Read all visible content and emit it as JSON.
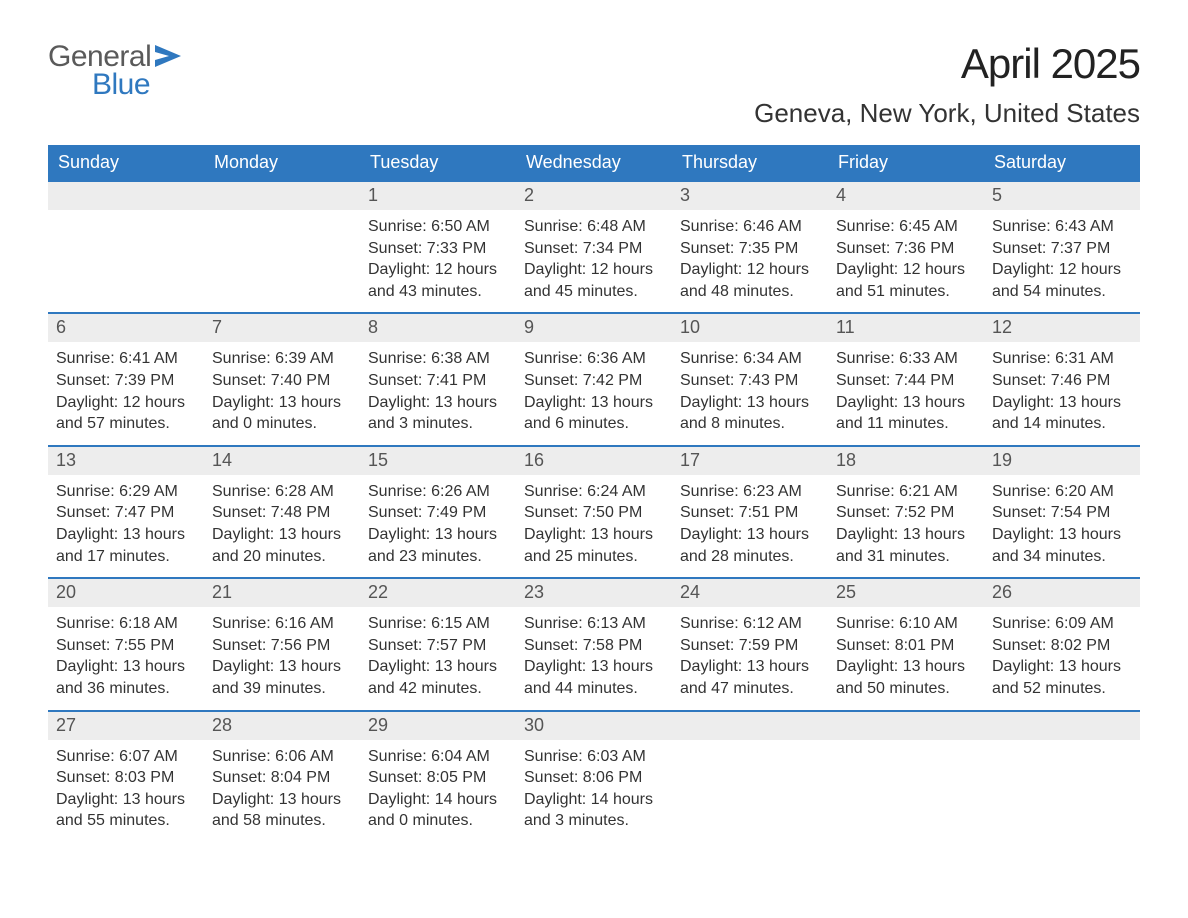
{
  "logo": {
    "general": "General",
    "blue": "Blue"
  },
  "header": {
    "month_title": "April 2025",
    "location": "Geneva, New York, United States"
  },
  "colors": {
    "header_bg": "#2f78bf",
    "header_text": "#ffffff",
    "daynum_bg": "#ededed",
    "daynum_text": "#555555",
    "body_text": "#333333",
    "logo_gray": "#5a5a5a",
    "logo_blue": "#2f78bf",
    "background": "#ffffff",
    "week_divider": "#2f78bf"
  },
  "typography": {
    "month_title_fontsize": 42,
    "location_fontsize": 26,
    "dow_fontsize": 18,
    "daynum_fontsize": 18,
    "body_fontsize": 16,
    "logo_fontsize": 30,
    "font_family": "Segoe UI"
  },
  "calendar": {
    "type": "calendar-grid",
    "columns": 7,
    "days_of_week": [
      "Sunday",
      "Monday",
      "Tuesday",
      "Wednesday",
      "Thursday",
      "Friday",
      "Saturday"
    ],
    "weeks": [
      [
        {
          "num": ""
        },
        {
          "num": ""
        },
        {
          "num": "1",
          "sunrise": "Sunrise: 6:50 AM",
          "sunset": "Sunset: 7:33 PM",
          "daylight1": "Daylight: 12 hours",
          "daylight2": "and 43 minutes."
        },
        {
          "num": "2",
          "sunrise": "Sunrise: 6:48 AM",
          "sunset": "Sunset: 7:34 PM",
          "daylight1": "Daylight: 12 hours",
          "daylight2": "and 45 minutes."
        },
        {
          "num": "3",
          "sunrise": "Sunrise: 6:46 AM",
          "sunset": "Sunset: 7:35 PM",
          "daylight1": "Daylight: 12 hours",
          "daylight2": "and 48 minutes."
        },
        {
          "num": "4",
          "sunrise": "Sunrise: 6:45 AM",
          "sunset": "Sunset: 7:36 PM",
          "daylight1": "Daylight: 12 hours",
          "daylight2": "and 51 minutes."
        },
        {
          "num": "5",
          "sunrise": "Sunrise: 6:43 AM",
          "sunset": "Sunset: 7:37 PM",
          "daylight1": "Daylight: 12 hours",
          "daylight2": "and 54 minutes."
        }
      ],
      [
        {
          "num": "6",
          "sunrise": "Sunrise: 6:41 AM",
          "sunset": "Sunset: 7:39 PM",
          "daylight1": "Daylight: 12 hours",
          "daylight2": "and 57 minutes."
        },
        {
          "num": "7",
          "sunrise": "Sunrise: 6:39 AM",
          "sunset": "Sunset: 7:40 PM",
          "daylight1": "Daylight: 13 hours",
          "daylight2": "and 0 minutes."
        },
        {
          "num": "8",
          "sunrise": "Sunrise: 6:38 AM",
          "sunset": "Sunset: 7:41 PM",
          "daylight1": "Daylight: 13 hours",
          "daylight2": "and 3 minutes."
        },
        {
          "num": "9",
          "sunrise": "Sunrise: 6:36 AM",
          "sunset": "Sunset: 7:42 PM",
          "daylight1": "Daylight: 13 hours",
          "daylight2": "and 6 minutes."
        },
        {
          "num": "10",
          "sunrise": "Sunrise: 6:34 AM",
          "sunset": "Sunset: 7:43 PM",
          "daylight1": "Daylight: 13 hours",
          "daylight2": "and 8 minutes."
        },
        {
          "num": "11",
          "sunrise": "Sunrise: 6:33 AM",
          "sunset": "Sunset: 7:44 PM",
          "daylight1": "Daylight: 13 hours",
          "daylight2": "and 11 minutes."
        },
        {
          "num": "12",
          "sunrise": "Sunrise: 6:31 AM",
          "sunset": "Sunset: 7:46 PM",
          "daylight1": "Daylight: 13 hours",
          "daylight2": "and 14 minutes."
        }
      ],
      [
        {
          "num": "13",
          "sunrise": "Sunrise: 6:29 AM",
          "sunset": "Sunset: 7:47 PM",
          "daylight1": "Daylight: 13 hours",
          "daylight2": "and 17 minutes."
        },
        {
          "num": "14",
          "sunrise": "Sunrise: 6:28 AM",
          "sunset": "Sunset: 7:48 PM",
          "daylight1": "Daylight: 13 hours",
          "daylight2": "and 20 minutes."
        },
        {
          "num": "15",
          "sunrise": "Sunrise: 6:26 AM",
          "sunset": "Sunset: 7:49 PM",
          "daylight1": "Daylight: 13 hours",
          "daylight2": "and 23 minutes."
        },
        {
          "num": "16",
          "sunrise": "Sunrise: 6:24 AM",
          "sunset": "Sunset: 7:50 PM",
          "daylight1": "Daylight: 13 hours",
          "daylight2": "and 25 minutes."
        },
        {
          "num": "17",
          "sunrise": "Sunrise: 6:23 AM",
          "sunset": "Sunset: 7:51 PM",
          "daylight1": "Daylight: 13 hours",
          "daylight2": "and 28 minutes."
        },
        {
          "num": "18",
          "sunrise": "Sunrise: 6:21 AM",
          "sunset": "Sunset: 7:52 PM",
          "daylight1": "Daylight: 13 hours",
          "daylight2": "and 31 minutes."
        },
        {
          "num": "19",
          "sunrise": "Sunrise: 6:20 AM",
          "sunset": "Sunset: 7:54 PM",
          "daylight1": "Daylight: 13 hours",
          "daylight2": "and 34 minutes."
        }
      ],
      [
        {
          "num": "20",
          "sunrise": "Sunrise: 6:18 AM",
          "sunset": "Sunset: 7:55 PM",
          "daylight1": "Daylight: 13 hours",
          "daylight2": "and 36 minutes."
        },
        {
          "num": "21",
          "sunrise": "Sunrise: 6:16 AM",
          "sunset": "Sunset: 7:56 PM",
          "daylight1": "Daylight: 13 hours",
          "daylight2": "and 39 minutes."
        },
        {
          "num": "22",
          "sunrise": "Sunrise: 6:15 AM",
          "sunset": "Sunset: 7:57 PM",
          "daylight1": "Daylight: 13 hours",
          "daylight2": "and 42 minutes."
        },
        {
          "num": "23",
          "sunrise": "Sunrise: 6:13 AM",
          "sunset": "Sunset: 7:58 PM",
          "daylight1": "Daylight: 13 hours",
          "daylight2": "and 44 minutes."
        },
        {
          "num": "24",
          "sunrise": "Sunrise: 6:12 AM",
          "sunset": "Sunset: 7:59 PM",
          "daylight1": "Daylight: 13 hours",
          "daylight2": "and 47 minutes."
        },
        {
          "num": "25",
          "sunrise": "Sunrise: 6:10 AM",
          "sunset": "Sunset: 8:01 PM",
          "daylight1": "Daylight: 13 hours",
          "daylight2": "and 50 minutes."
        },
        {
          "num": "26",
          "sunrise": "Sunrise: 6:09 AM",
          "sunset": "Sunset: 8:02 PM",
          "daylight1": "Daylight: 13 hours",
          "daylight2": "and 52 minutes."
        }
      ],
      [
        {
          "num": "27",
          "sunrise": "Sunrise: 6:07 AM",
          "sunset": "Sunset: 8:03 PM",
          "daylight1": "Daylight: 13 hours",
          "daylight2": "and 55 minutes."
        },
        {
          "num": "28",
          "sunrise": "Sunrise: 6:06 AM",
          "sunset": "Sunset: 8:04 PM",
          "daylight1": "Daylight: 13 hours",
          "daylight2": "and 58 minutes."
        },
        {
          "num": "29",
          "sunrise": "Sunrise: 6:04 AM",
          "sunset": "Sunset: 8:05 PM",
          "daylight1": "Daylight: 14 hours",
          "daylight2": "and 0 minutes."
        },
        {
          "num": "30",
          "sunrise": "Sunrise: 6:03 AM",
          "sunset": "Sunset: 8:06 PM",
          "daylight1": "Daylight: 14 hours",
          "daylight2": "and 3 minutes."
        },
        {
          "num": ""
        },
        {
          "num": ""
        },
        {
          "num": ""
        }
      ]
    ]
  }
}
